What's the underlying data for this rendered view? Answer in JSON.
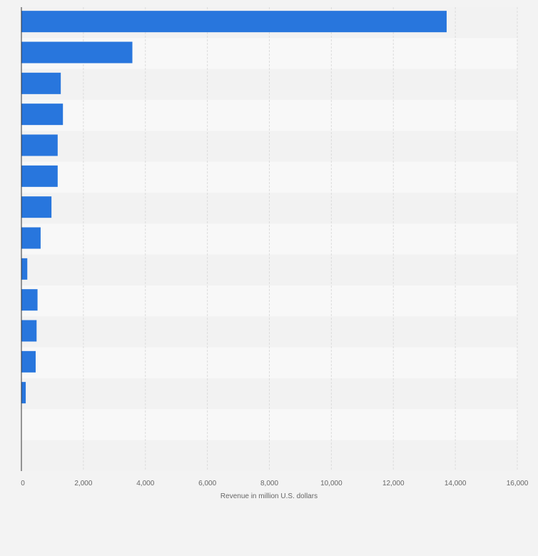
{
  "chart_data": {
    "type": "bar",
    "orientation": "horizontal",
    "title": "",
    "xlabel": "Revenue in million U.S. dollars",
    "ylabel": "",
    "xlim": [
      0,
      16000
    ],
    "xticks": [
      0,
      2000,
      4000,
      6000,
      8000,
      10000,
      12000,
      14000,
      16000
    ],
    "xtick_labels": [
      "0",
      "2,000",
      "4,000",
      "6,000",
      "8,000",
      "10,000",
      "12,000",
      "14,000",
      "16,000"
    ],
    "categories_visible": false,
    "num_slots": 15,
    "values": [
      13720,
      3580,
      1270,
      1340,
      1170,
      1170,
      970,
      620,
      190,
      520,
      490,
      460,
      140
    ],
    "grid": true,
    "legend": "none",
    "colors": {
      "bar": "#2876dd",
      "background": "#f3f3f3",
      "band_light": "#f8f8f8",
      "band_dark": "#f2f2f2",
      "gridline": "#dcdcdc",
      "axis": "#333333",
      "text": "#666666"
    }
  }
}
